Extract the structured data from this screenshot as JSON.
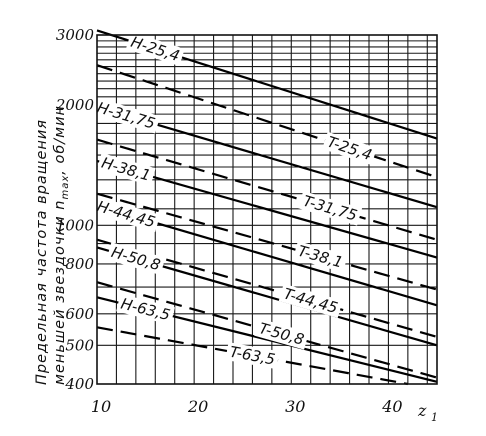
{
  "chart_data": {
    "type": "line",
    "title": "",
    "xlabel": "z",
    "xlabel_subscript": "1",
    "ylabel_line1": "Предельная частота вращения",
    "ylabel_line2": "меньшей звездочки n",
    "ylabel_subscript": "max",
    "ylabel_unit": ", об/мин",
    "xlim": [
      10,
      45
    ],
    "ylim": [
      400,
      3000
    ],
    "yscale": "log",
    "grid": true,
    "x_ticks": [
      10,
      20,
      30,
      40
    ],
    "x_tick_labels": [
      "10",
      "20",
      "30",
      "40"
    ],
    "y_ticks": [
      400,
      500,
      600,
      800,
      1000,
      2000,
      3000
    ],
    "y_tick_labels": [
      "400",
      "500",
      "600",
      "800",
      "1000",
      "2000",
      "3000"
    ],
    "series": [
      {
        "name": "H-25,4",
        "style": "solid",
        "x": [
          10,
          45
        ],
        "y": [
          3080,
          1650
        ]
      },
      {
        "name": "T-25,4",
        "style": "dashed",
        "x": [
          10,
          45
        ],
        "y": [
          2520,
          1320
        ]
      },
      {
        "name": "H-31,75",
        "style": "solid",
        "x": [
          10,
          45
        ],
        "y": [
          1980,
          1110
        ]
      },
      {
        "name": "T-31,75",
        "style": "dashed",
        "x": [
          10,
          45
        ],
        "y": [
          1640,
          920
        ]
      },
      {
        "name": "H-38,1",
        "style": "solid",
        "x": [
          10,
          45
        ],
        "y": [
          1450,
          830
        ]
      },
      {
        "name": "T-38,1",
        "style": "dashed",
        "x": [
          10,
          45
        ],
        "y": [
          1200,
          690
        ]
      },
      {
        "name": "H-44,45",
        "style": "solid",
        "x": [
          10,
          45
        ],
        "y": [
          1120,
          630
        ]
      },
      {
        "name": "T-44,45",
        "style": "dashed",
        "x": [
          10,
          45
        ],
        "y": [
          920,
          525
        ]
      },
      {
        "name": "H-50,8",
        "style": "solid",
        "x": [
          10,
          45
        ],
        "y": [
          880,
          500
        ]
      },
      {
        "name": "T-50,8",
        "style": "dashed",
        "x": [
          10,
          45
        ],
        "y": [
          720,
          415
        ]
      },
      {
        "name": "H-63,5",
        "style": "solid",
        "x": [
          10,
          45
        ],
        "y": [
          660,
          405
        ]
      },
      {
        "name": "T-63,5",
        "style": "dashed",
        "x": [
          10,
          42
        ],
        "y": [
          555,
          400
        ]
      }
    ],
    "series_label_positions": {
      "H-25,4": 16,
      "T-25,4": 36,
      "H-31,75": 13,
      "T-31,75": 34,
      "H-38,1": 13,
      "T-38,1": 33,
      "H-44,45": 13,
      "T-44,45": 32,
      "H-50,8": 14,
      "T-50,8": 29,
      "H-63,5": 15,
      "T-63,5": 26
    }
  }
}
